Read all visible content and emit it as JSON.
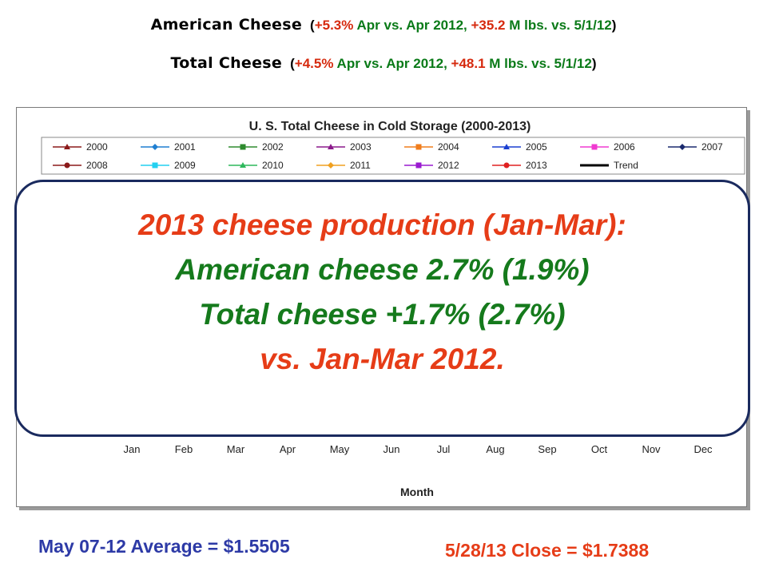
{
  "header": {
    "line1": {
      "name": "American Cheese",
      "pre": "(",
      "pct": "+5.3%",
      "mid": " Apr vs. Apr 2012, ",
      "lbs": "+35.2",
      "post": " M lbs. vs. 5/1/12",
      "close": ")"
    },
    "line2": {
      "name": "Total Cheese",
      "pre": "(",
      "pct": "+4.5%",
      "mid": " Apr vs. Apr 2012, ",
      "lbs": "+48.1",
      "post": " M lbs. vs. 5/1/12",
      "close": ")"
    }
  },
  "chart_data": {
    "type": "line",
    "title": "U. S. Total Cheese in Cold Storage (2000-2013)",
    "xlabel": "Month",
    "ylabel": "",
    "categories": [
      "Jan",
      "Feb",
      "Mar",
      "Apr",
      "May",
      "Jun",
      "Jul",
      "Aug",
      "Sep",
      "Oct",
      "Nov",
      "Dec"
    ],
    "legend_position": "top",
    "series": [
      {
        "name": "2000",
        "color": "#8b1a1a",
        "marker": "triangle"
      },
      {
        "name": "2001",
        "color": "#1f7fd1",
        "marker": "diamond"
      },
      {
        "name": "2002",
        "color": "#2e8b2e",
        "marker": "square"
      },
      {
        "name": "2003",
        "color": "#8b1a8b",
        "marker": "triangle"
      },
      {
        "name": "2004",
        "color": "#f07d1c",
        "marker": "square"
      },
      {
        "name": "2005",
        "color": "#1a3fd0",
        "marker": "triangle"
      },
      {
        "name": "2006",
        "color": "#f03ad0",
        "marker": "square"
      },
      {
        "name": "2007",
        "color": "#1a2a6e",
        "marker": "diamond"
      },
      {
        "name": "2008",
        "color": "#8b1a1a",
        "marker": "circle"
      },
      {
        "name": "2009",
        "color": "#22d0f0",
        "marker": "square"
      },
      {
        "name": "2010",
        "color": "#2eb85c",
        "marker": "triangle"
      },
      {
        "name": "2011",
        "color": "#f0a020",
        "marker": "diamond"
      },
      {
        "name": "2012",
        "color": "#9a1ad0",
        "marker": "square"
      },
      {
        "name": "2013",
        "color": "#e02020",
        "marker": "circle"
      },
      {
        "name": "Trend",
        "color": "#000000",
        "marker": "none"
      }
    ]
  },
  "callout": {
    "line1": "2013 cheese production (Jan-Mar):",
    "line2": "American cheese 2.7% (1.9%)",
    "line3": "Total cheese +1.7% (2.7%)",
    "line4": "vs. Jan-Mar 2012."
  },
  "footer": {
    "average": "May 07-12 Average = $1.5505",
    "close": "5/28/13 Close = $1.7388"
  }
}
